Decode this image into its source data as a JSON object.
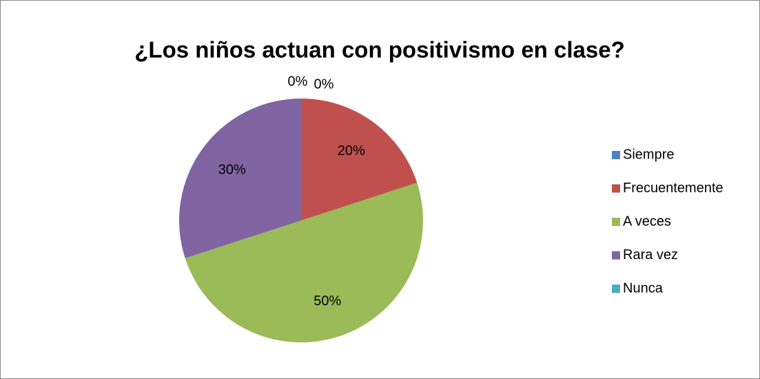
{
  "chart_data": {
    "type": "pie",
    "title": "¿Los niños actuan con positivismo en clase?",
    "categories": [
      "Siempre",
      "Frecuentemente",
      "A veces",
      "Rara vez",
      "Nunca"
    ],
    "values": [
      0,
      20,
      50,
      30,
      0
    ],
    "value_labels": [
      "0%",
      "20%",
      "50%",
      "30%",
      "0%"
    ],
    "colors": [
      "#4f81bd",
      "#c0504d",
      "#9bbb59",
      "#8064a2",
      "#4bacc6"
    ],
    "legend": "right"
  }
}
